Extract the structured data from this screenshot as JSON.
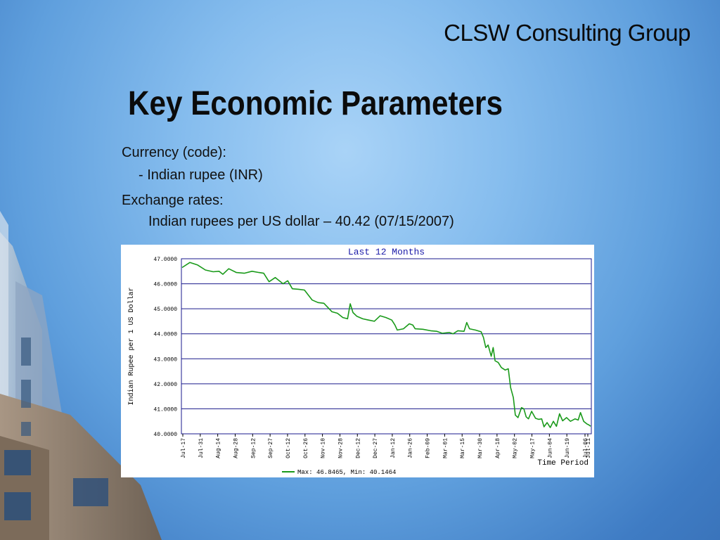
{
  "header": {
    "company": "CLSW Consulting Group",
    "title": "Key Economic Parameters"
  },
  "content": {
    "currency_label": "Currency (code):",
    "currency_value": "- Indian rupee (INR)",
    "exchange_label": "Exchange rates:",
    "exchange_value": "Indian rupees per US dollar – 40.42 (07/15/2007)"
  },
  "colors": {
    "line": "#1a9a1a",
    "grid": "#1a1a8c",
    "title_text": "#1a1aa8"
  },
  "chart_data": {
    "type": "line",
    "title": "Last 12 Months",
    "ylabel": "Indian Rupee per 1 US Dollar",
    "xlabel": "Time Period",
    "ylim": [
      40,
      47
    ],
    "y_ticks": [
      "47.0000",
      "46.0000",
      "45.0000",
      "44.0000",
      "43.0000",
      "42.0000",
      "41.0000",
      "40.0000"
    ],
    "x_tick_labels": [
      "Jul-17",
      "Jul-31",
      "Aug-14",
      "Aug-28",
      "Sep-12",
      "Sep-27",
      "Oct-12",
      "Oct-26",
      "Nov-10",
      "Nov-28",
      "Dec-12",
      "Dec-27",
      "Jan-12",
      "Jan-26",
      "Feb-09",
      "Mar-01",
      "Mar-15",
      "Mar-30",
      "Apr-18",
      "May-02",
      "May-17",
      "Jun-04",
      "Jun-19",
      "Jul-06",
      "Jul-11"
    ],
    "series": [
      {
        "legend_text": "Max: 46.8465, Min: 40.1464",
        "values": [
          [
            0,
            46.65
          ],
          [
            2,
            46.85
          ],
          [
            4,
            46.75
          ],
          [
            6,
            46.55
          ],
          [
            8,
            46.48
          ],
          [
            9.5,
            46.5
          ],
          [
            10.5,
            46.38
          ],
          [
            12,
            46.6
          ],
          [
            14,
            46.45
          ],
          [
            16,
            46.42
          ],
          [
            18,
            46.5
          ],
          [
            19.8,
            46.45
          ],
          [
            21,
            46.42
          ],
          [
            22.4,
            46.08
          ],
          [
            24,
            46.25
          ],
          [
            26,
            46.0
          ],
          [
            27.2,
            46.12
          ],
          [
            28.4,
            45.8
          ],
          [
            30,
            45.78
          ],
          [
            31.5,
            45.75
          ],
          [
            32.5,
            45.55
          ],
          [
            33.5,
            45.35
          ],
          [
            35,
            45.25
          ],
          [
            36.5,
            45.22
          ],
          [
            38.6,
            44.88
          ],
          [
            40,
            44.82
          ],
          [
            41.4,
            44.65
          ],
          [
            42.6,
            44.6
          ],
          [
            43.3,
            45.2
          ],
          [
            44,
            44.85
          ],
          [
            45,
            44.7
          ],
          [
            46.5,
            44.6
          ],
          [
            48,
            44.55
          ],
          [
            49.5,
            44.5
          ],
          [
            51,
            44.72
          ],
          [
            52.5,
            44.65
          ],
          [
            54,
            44.55
          ],
          [
            54.8,
            44.35
          ],
          [
            55.4,
            44.15
          ],
          [
            57,
            44.2
          ],
          [
            58.5,
            44.4
          ],
          [
            59.4,
            44.35
          ],
          [
            60,
            44.2
          ],
          [
            62,
            44.18
          ],
          [
            64,
            44.12
          ],
          [
            65.6,
            44.1
          ],
          [
            67,
            44.02
          ],
          [
            68.8,
            44.05
          ],
          [
            69.8,
            44.0
          ],
          [
            71,
            44.12
          ],
          [
            72.6,
            44.1
          ],
          [
            73.3,
            44.45
          ],
          [
            74,
            44.2
          ],
          [
            75.5,
            44.15
          ],
          [
            77,
            44.08
          ],
          [
            77.6,
            43.85
          ],
          [
            78.2,
            43.45
          ],
          [
            78.8,
            43.55
          ],
          [
            79.6,
            43.1
          ],
          [
            80.1,
            43.45
          ],
          [
            80.6,
            42.92
          ],
          [
            81.4,
            42.85
          ],
          [
            82.2,
            42.65
          ],
          [
            83.2,
            42.55
          ],
          [
            84,
            42.6
          ],
          [
            84.6,
            41.85
          ],
          [
            85.3,
            41.45
          ],
          [
            85.8,
            40.75
          ],
          [
            86.5,
            40.65
          ],
          [
            87.4,
            41.05
          ],
          [
            88,
            41.0
          ],
          [
            88.6,
            40.68
          ],
          [
            89.2,
            40.6
          ],
          [
            90,
            40.9
          ],
          [
            91,
            40.62
          ],
          [
            91.8,
            40.58
          ],
          [
            92.6,
            40.6
          ],
          [
            93.2,
            40.28
          ],
          [
            94,
            40.45
          ],
          [
            94.8,
            40.25
          ],
          [
            95.6,
            40.5
          ],
          [
            96.4,
            40.3
          ],
          [
            97.2,
            40.8
          ],
          [
            98,
            40.52
          ],
          [
            99,
            40.65
          ],
          [
            100,
            40.5
          ],
          [
            101.2,
            40.6
          ],
          [
            102,
            40.55
          ],
          [
            102.6,
            40.85
          ],
          [
            103.4,
            40.5
          ],
          [
            104.2,
            40.4
          ],
          [
            104.8,
            40.35
          ],
          [
            105.2,
            40.3
          ]
        ]
      }
    ]
  }
}
